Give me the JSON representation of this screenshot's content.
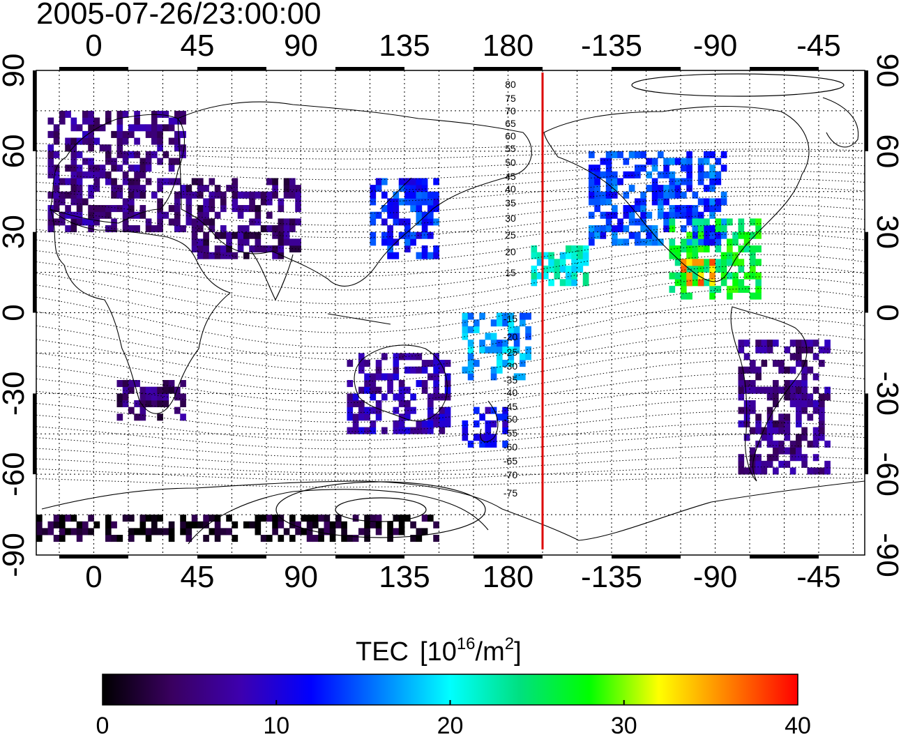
{
  "title": "2005-07-26/23:00:00",
  "lon_ticks_top": [
    "0",
    "45",
    "90",
    "135",
    "180",
    "-135",
    "-90",
    "-45"
  ],
  "lon_ticks_bottom": [
    "0",
    "45",
    "90",
    "135",
    "180",
    "-135",
    "-90",
    "-45"
  ],
  "lat_ticks_left": [
    "90",
    "60",
    "30",
    "0",
    "-30",
    "-60",
    "-90"
  ],
  "lat_ticks_right": [
    "90",
    "60",
    "30",
    "0",
    "-30",
    "-60",
    "-90"
  ],
  "magnetic_latitude_labels": [
    "80",
    "75",
    "70",
    "65",
    "60",
    "55",
    "50",
    "45",
    "40",
    "35",
    "30",
    "25",
    "20",
    "15",
    "-15",
    "-20",
    "-25",
    "-30",
    "-35",
    "-40",
    "-45",
    "-50",
    "-55",
    "-60",
    "-65",
    "-70",
    "-75"
  ],
  "colorbar": {
    "title": "TEC",
    "unit_prefix": "[10",
    "unit_exp1": "16",
    "unit_mid": "/m",
    "unit_exp2": "2",
    "unit_suffix": "]",
    "ticks": [
      "0",
      "10",
      "20",
      "30",
      "40"
    ],
    "min": 0,
    "max": 40,
    "stops": [
      "#000000",
      "#3a0060",
      "#3d00b0",
      "#0000ff",
      "#0080ff",
      "#00ffff",
      "#00e080",
      "#00ff00",
      "#ffff00",
      "#ff8000",
      "#ff0000"
    ]
  },
  "chart_data": {
    "type": "heatmap",
    "title": "2005-07-26/23:00:00",
    "xlim_lon": [
      -25,
      335
    ],
    "ylim_lat": [
      -90,
      90
    ],
    "grid": true,
    "marker_line_lon": 195,
    "marker_line_color": "#dd0000",
    "colorbar_label": "TEC [10^16/m^2]",
    "colorbar_range": [
      0,
      40
    ],
    "tec_regions": [
      {
        "lon": [
          -20,
          40
        ],
        "lat": [
          30,
          75
        ],
        "tec": 6
      },
      {
        "lon": [
          40,
          90
        ],
        "lat": [
          20,
          50
        ],
        "tec": 5
      },
      {
        "lon": [
          120,
          150
        ],
        "lat": [
          20,
          50
        ],
        "tec": 13
      },
      {
        "lon": [
          215,
          275
        ],
        "lat": [
          25,
          60
        ],
        "tec": 14
      },
      {
        "lon": [
          250,
          290
        ],
        "lat": [
          5,
          35
        ],
        "tec": 26
      },
      {
        "lon": [
          255,
          270
        ],
        "lat": [
          10,
          20
        ],
        "tec": 35
      },
      {
        "lon": [
          280,
          320
        ],
        "lat": [
          -60,
          -10
        ],
        "tec": 6
      },
      {
        "lon": [
          10,
          40
        ],
        "lat": [
          -40,
          -25
        ],
        "tec": 5
      },
      {
        "lon": [
          110,
          155
        ],
        "lat": [
          -45,
          -15
        ],
        "tec": 8
      },
      {
        "lon": [
          160,
          180
        ],
        "lat": [
          -50,
          -35
        ],
        "tec": 11
      },
      {
        "lon": [
          -25,
          150
        ],
        "lat": [
          -85,
          -75
        ],
        "tec": 1
      },
      {
        "lon": [
          190,
          215
        ],
        "lat": [
          10,
          25
        ],
        "tec": 21
      },
      {
        "lon": [
          160,
          190
        ],
        "lat": [
          -25,
          0
        ],
        "tec": 17
      }
    ]
  }
}
